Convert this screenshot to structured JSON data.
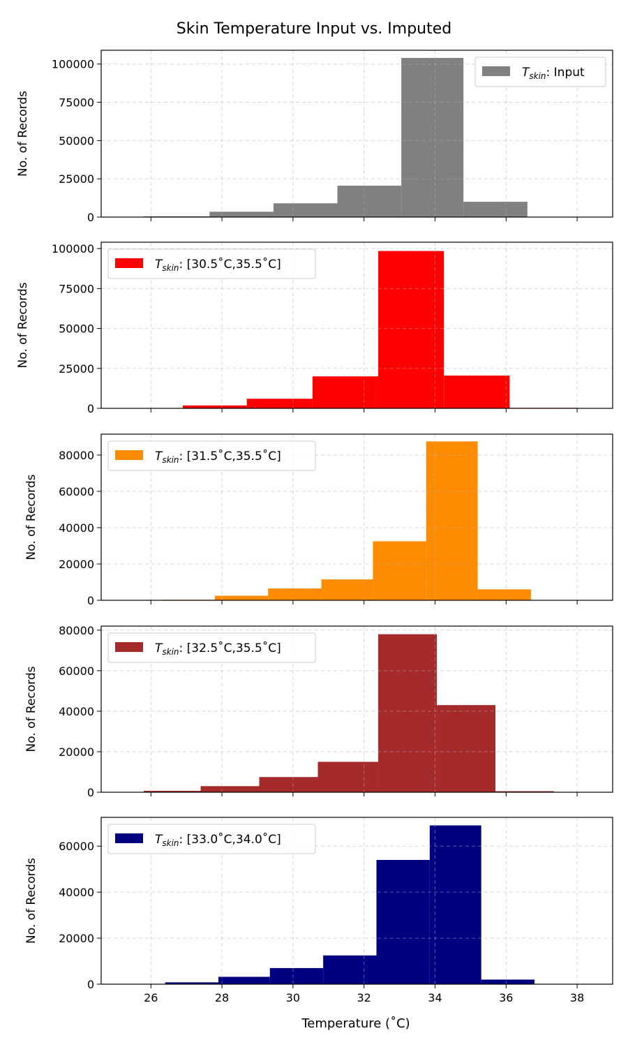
{
  "chart_data": {
    "type": "bar",
    "title": "Skin Temperature Input vs. Imputed",
    "xlabel": "Temperature (˚C)",
    "ylabel": "No. of Records",
    "xlim": [
      24.6,
      39.0
    ],
    "xticks": [
      26,
      28,
      30,
      32,
      34,
      36,
      38
    ],
    "grid": true,
    "panels": [
      {
        "legend": {
          "prefix": "T",
          "subscript": "skin",
          "suffix": ": Input",
          "position": "top-right"
        },
        "color": "#808080",
        "ylim": [
          0,
          109000
        ],
        "yticks": [
          0,
          25000,
          50000,
          75000,
          100000
        ],
        "bins": [
          {
            "x0": 25.8,
            "x1": 27.65,
            "count": 500
          },
          {
            "x0": 27.65,
            "x1": 29.45,
            "count": 3500
          },
          {
            "x0": 29.45,
            "x1": 31.25,
            "count": 9000
          },
          {
            "x0": 31.25,
            "x1": 33.05,
            "count": 20500
          },
          {
            "x0": 33.05,
            "x1": 34.8,
            "count": 104000
          },
          {
            "x0": 34.8,
            "x1": 36.6,
            "count": 10000
          },
          {
            "x0": 36.6,
            "x1": 38.4,
            "count": 150
          }
        ]
      },
      {
        "legend": {
          "prefix": "T",
          "subscript": "skin",
          "suffix": ": [30.5˚C,35.5˚C]",
          "position": "top-left"
        },
        "color": "#ff0000",
        "ylim": [
          0,
          104000
        ],
        "yticks": [
          0,
          25000,
          50000,
          75000,
          100000
        ],
        "bins": [
          {
            "x0": 25.2,
            "x1": 26.9,
            "count": 0
          },
          {
            "x0": 26.9,
            "x1": 28.7,
            "count": 1800
          },
          {
            "x0": 28.7,
            "x1": 30.55,
            "count": 6000
          },
          {
            "x0": 30.55,
            "x1": 32.4,
            "count": 20000
          },
          {
            "x0": 32.4,
            "x1": 34.25,
            "count": 98500
          },
          {
            "x0": 34.25,
            "x1": 36.1,
            "count": 20500
          },
          {
            "x0": 36.1,
            "x1": 38.0,
            "count": 300
          }
        ]
      },
      {
        "legend": {
          "prefix": "T",
          "subscript": "skin",
          "suffix": ": [31.5˚C,35.5˚C]",
          "position": "top-left"
        },
        "color": "#ff8c00",
        "ylim": [
          0,
          91500
        ],
        "yticks": [
          0,
          20000,
          40000,
          60000,
          80000
        ],
        "bins": [
          {
            "x0": 26.3,
            "x1": 27.8,
            "count": 300
          },
          {
            "x0": 27.8,
            "x1": 29.3,
            "count": 2500
          },
          {
            "x0": 29.3,
            "x1": 30.8,
            "count": 6500
          },
          {
            "x0": 30.8,
            "x1": 32.25,
            "count": 11500
          },
          {
            "x0": 32.25,
            "x1": 33.75,
            "count": 32500
          },
          {
            "x0": 33.75,
            "x1": 35.2,
            "count": 87500
          },
          {
            "x0": 35.2,
            "x1": 36.7,
            "count": 6000
          }
        ]
      },
      {
        "legend": {
          "prefix": "T",
          "subscript": "skin",
          "suffix": ": [32.5˚C,35.5˚C]",
          "position": "top-left"
        },
        "color": "#a52a2a",
        "ylim": [
          0,
          82000
        ],
        "yticks": [
          0,
          20000,
          40000,
          60000,
          80000
        ],
        "bins": [
          {
            "x0": 25.8,
            "x1": 27.4,
            "count": 700
          },
          {
            "x0": 27.4,
            "x1": 29.05,
            "count": 3000
          },
          {
            "x0": 29.05,
            "x1": 30.7,
            "count": 7500
          },
          {
            "x0": 30.7,
            "x1": 32.4,
            "count": 15000
          },
          {
            "x0": 32.4,
            "x1": 34.05,
            "count": 78000
          },
          {
            "x0": 34.05,
            "x1": 35.7,
            "count": 43000
          },
          {
            "x0": 35.7,
            "x1": 37.35,
            "count": 500
          }
        ]
      },
      {
        "legend": {
          "prefix": "T",
          "subscript": "skin",
          "suffix": ": [33.0˚C,34.0˚C]",
          "position": "top-left"
        },
        "color": "#000080",
        "ylim": [
          0,
          72500
        ],
        "yticks": [
          0,
          20000,
          40000,
          60000
        ],
        "bins": [
          {
            "x0": 26.4,
            "x1": 27.9,
            "count": 800
          },
          {
            "x0": 27.9,
            "x1": 29.35,
            "count": 3200
          },
          {
            "x0": 29.35,
            "x1": 30.85,
            "count": 7000
          },
          {
            "x0": 30.85,
            "x1": 32.35,
            "count": 12500
          },
          {
            "x0": 32.35,
            "x1": 33.85,
            "count": 54000
          },
          {
            "x0": 33.85,
            "x1": 35.3,
            "count": 69000
          },
          {
            "x0": 35.3,
            "x1": 36.8,
            "count": 2000
          }
        ]
      }
    ]
  }
}
